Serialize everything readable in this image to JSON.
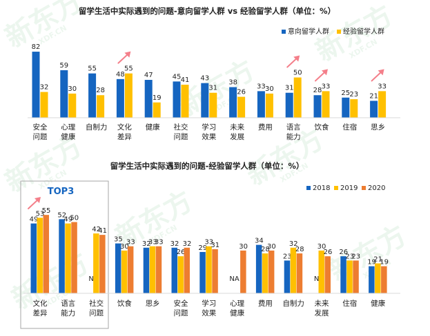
{
  "chart_data": [
    {
      "type": "bar",
      "title": "留学生活中实际遇到的问题-意向留学人群 vs 经验留学人群（单位：%）",
      "categories": [
        "安全\n问题",
        "心理\n健康",
        "自制力",
        "文化\n差异",
        "健康",
        "社交\n问题",
        "学习\n效果",
        "未来\n发展",
        "费用",
        "语言\n能力",
        "饮食",
        "住宿",
        "思乡"
      ],
      "series": [
        {
          "name": "意向留学人群",
          "values": [
            82,
            59,
            55,
            48,
            47,
            45,
            43,
            38,
            33,
            31,
            28,
            25,
            21
          ]
        },
        {
          "name": "经验留学人群",
          "values": [
            32,
            30,
            28,
            55,
            19,
            41,
            31,
            26,
            30,
            50,
            33,
            23,
            33
          ]
        }
      ],
      "colors": [
        "#1565c0",
        "#ffc000"
      ],
      "ylim": [
        0,
        90
      ],
      "legend_position": "top-right",
      "highlight_arrows_on": [
        "文化\n差异",
        "语言\n能力",
        "饮食",
        "思乡"
      ]
    },
    {
      "type": "bar",
      "title": "留学生活中实际遇到的问题-经验留学人群（单位：%）",
      "categories": [
        "文化\n差异",
        "语言\n能力",
        "社交\n问题",
        "饮食",
        "思乡",
        "安全\n问题",
        "学习\n效果",
        "心理\n健康",
        "费用",
        "自制力",
        "未来\n发展",
        "住宿",
        "健康"
      ],
      "series": [
        {
          "name": "2018",
          "values": [
            49,
            52,
            null,
            35,
            32,
            32,
            29,
            null,
            34,
            23,
            null,
            26,
            19
          ]
        },
        {
          "name": "2019",
          "values": [
            53,
            49,
            42,
            30,
            33,
            26,
            33,
            null,
            28,
            32,
            30,
            23,
            21
          ]
        },
        {
          "name": "2020",
          "values": [
            55,
            50,
            41,
            33,
            33,
            32,
            31,
            30,
            30,
            28,
            26,
            23,
            19
          ]
        }
      ],
      "colors": [
        "#1565c0",
        "#ffc000",
        "#ed7d31"
      ],
      "missing_label": "NA",
      "ylim": [
        0,
        60
      ],
      "legend_position": "top-right",
      "highlight_box": {
        "label": "TOP3",
        "categories": 3
      }
    }
  ],
  "watermark": {
    "text": "新东方",
    "subtext": "XDF.CN"
  }
}
